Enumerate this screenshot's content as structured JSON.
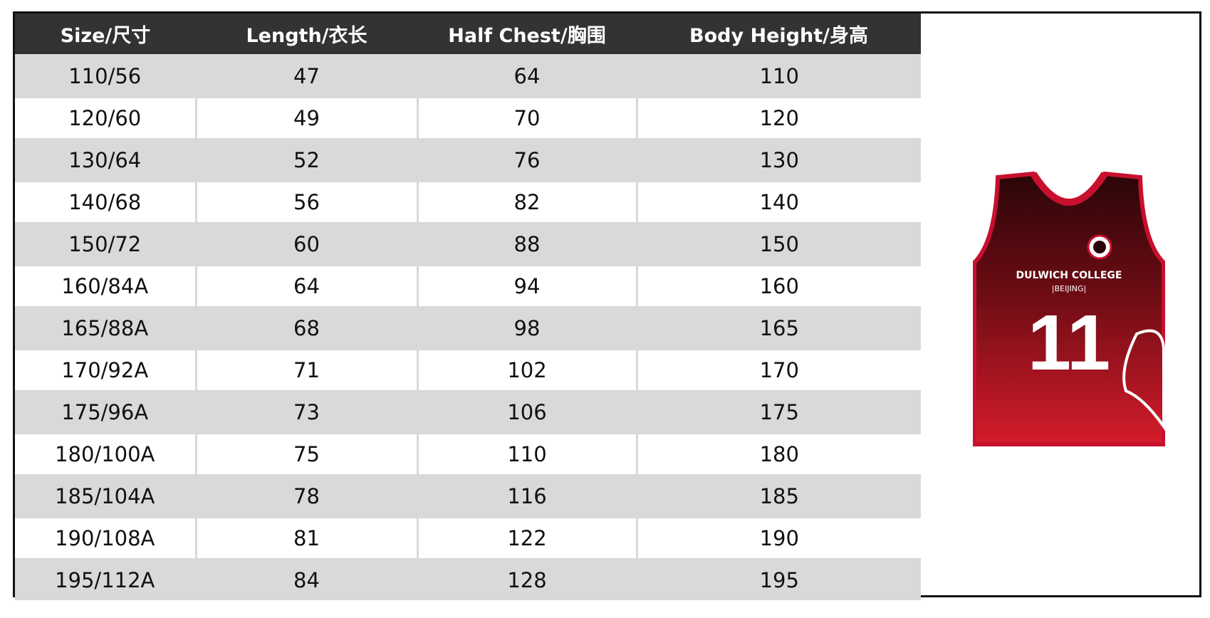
{
  "header": {
    "columns": [
      "Size/尺寸",
      "Length/衣长",
      "Half Chest/胸围",
      "Body Height/身高"
    ]
  },
  "table": {
    "rows": [
      [
        "110/56",
        47,
        64,
        110
      ],
      [
        "120/60",
        49,
        70,
        120
      ],
      [
        "130/64",
        52,
        76,
        130
      ],
      [
        "140/68",
        56,
        82,
        140
      ],
      [
        "150/72",
        60,
        88,
        150
      ],
      [
        "160/84A",
        64,
        94,
        160
      ],
      [
        "165/88A",
        68,
        98,
        165
      ],
      [
        "170/92A",
        71,
        102,
        170
      ],
      [
        "175/96A",
        73,
        106,
        175
      ],
      [
        "180/100A",
        75,
        110,
        180
      ],
      [
        "185/104A",
        78,
        116,
        185
      ],
      [
        "190/108A",
        81,
        122,
        190
      ],
      [
        "195/112A",
        84,
        128,
        195
      ]
    ]
  },
  "image": {
    "school": "DULWICH COLLEGE",
    "city": "|BEIJING|",
    "number": "11"
  }
}
